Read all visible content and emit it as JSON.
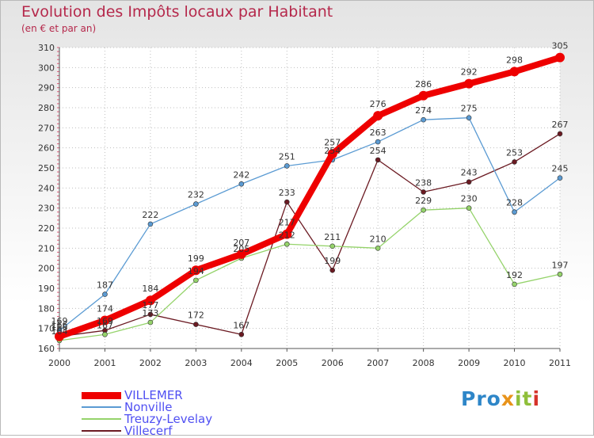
{
  "chart_data": {
    "type": "line",
    "title": "Evolution des Impôts locaux par Habitant",
    "subtitle": "(en € et par an)",
    "xlabel": "",
    "ylabel": "",
    "categories": [
      "2000",
      "2001",
      "2002",
      "2003",
      "2004",
      "2005",
      "2006",
      "2007",
      "2008",
      "2009",
      "2010",
      "2011"
    ],
    "ylim": [
      160,
      310
    ],
    "yticks": [
      160,
      170,
      180,
      190,
      200,
      210,
      220,
      230,
      240,
      250,
      260,
      270,
      280,
      290,
      300,
      310
    ],
    "series": [
      {
        "name": "Villecerf",
        "color": "#6b1a22",
        "values": [
          166,
          169,
          177,
          172,
          167,
          233,
          199,
          254,
          238,
          243,
          253,
          267
        ]
      },
      {
        "name": "Treuzy-Levelay",
        "color": "#95d36b",
        "values": [
          164,
          167,
          173,
          194,
          205,
          212,
          211,
          210,
          229,
          230,
          192,
          197
        ]
      },
      {
        "name": "Nonville",
        "color": "#5b9bd3",
        "values": [
          169,
          187,
          222,
          232,
          242,
          251,
          254,
          263,
          274,
          275,
          228,
          245
        ]
      },
      {
        "name": "VILLEMER",
        "color": "#ee0000",
        "values": [
          166,
          174,
          184,
          199,
          207,
          217,
          257,
          276,
          286,
          292,
          298,
          305
        ]
      }
    ]
  },
  "legend": [
    {
      "name": "VILLEMER",
      "color": "#ee0000"
    },
    {
      "name": "Nonville",
      "color": "#5b9bd3"
    },
    {
      "name": "Treuzy-Levelay",
      "color": "#95d36b"
    },
    {
      "name": "Villecerf",
      "color": "#6b1a22"
    }
  ],
  "logo": {
    "p1": "Pro",
    "p2": "x",
    "p3": "it",
    "p4": "i"
  }
}
